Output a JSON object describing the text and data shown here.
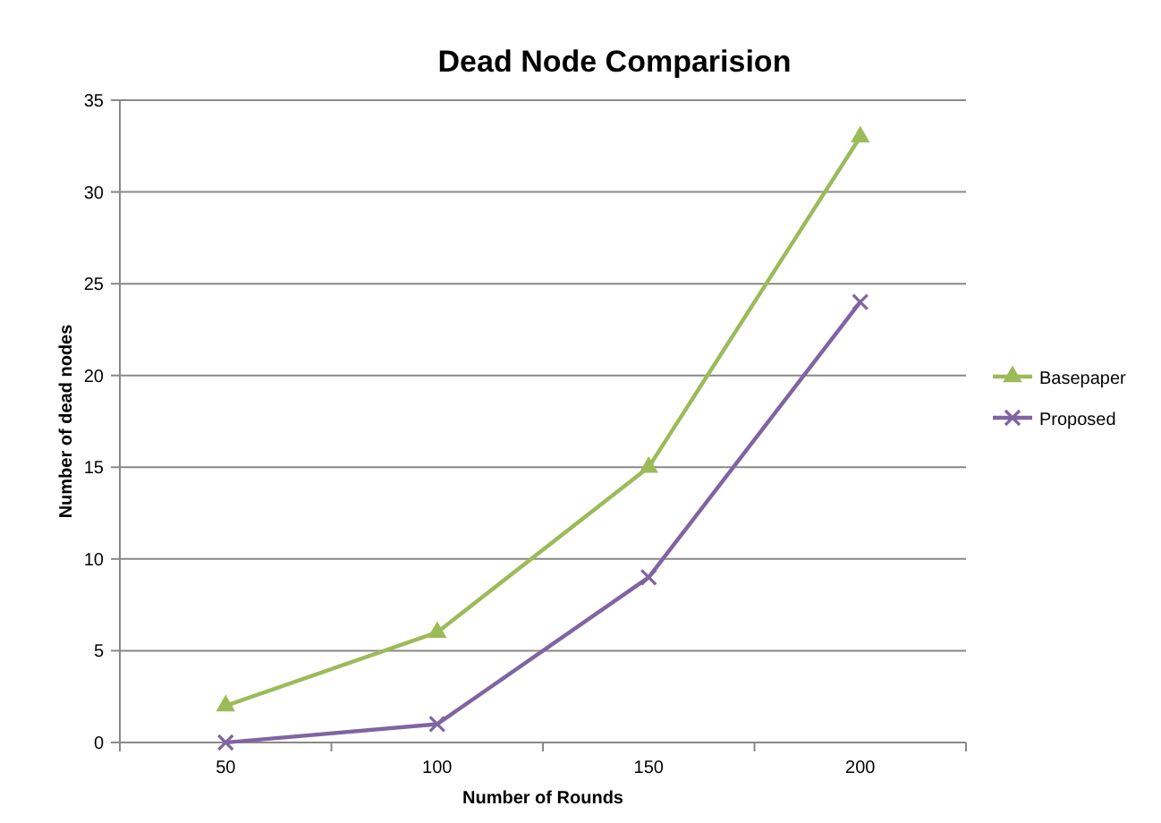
{
  "chart_data": {
    "type": "line",
    "title": "Dead Node Comparision",
    "xlabel": "Number of Rounds",
    "ylabel": "Number of dead nodes",
    "categories": [
      "50",
      "100",
      "150",
      "200"
    ],
    "series": [
      {
        "name": "Basepaper",
        "color": "#9bbb59",
        "values": [
          2,
          6,
          15,
          33
        ],
        "marker": "triangle"
      },
      {
        "name": "Proposed",
        "color": "#8064a2",
        "values": [
          0,
          1,
          9,
          24
        ],
        "marker": "cross"
      }
    ],
    "ylim": [
      0,
      35
    ],
    "yticks": [
      0,
      5,
      10,
      15,
      20,
      25,
      30,
      35
    ],
    "grid": "y",
    "legend": "right",
    "line_style": "solid"
  }
}
